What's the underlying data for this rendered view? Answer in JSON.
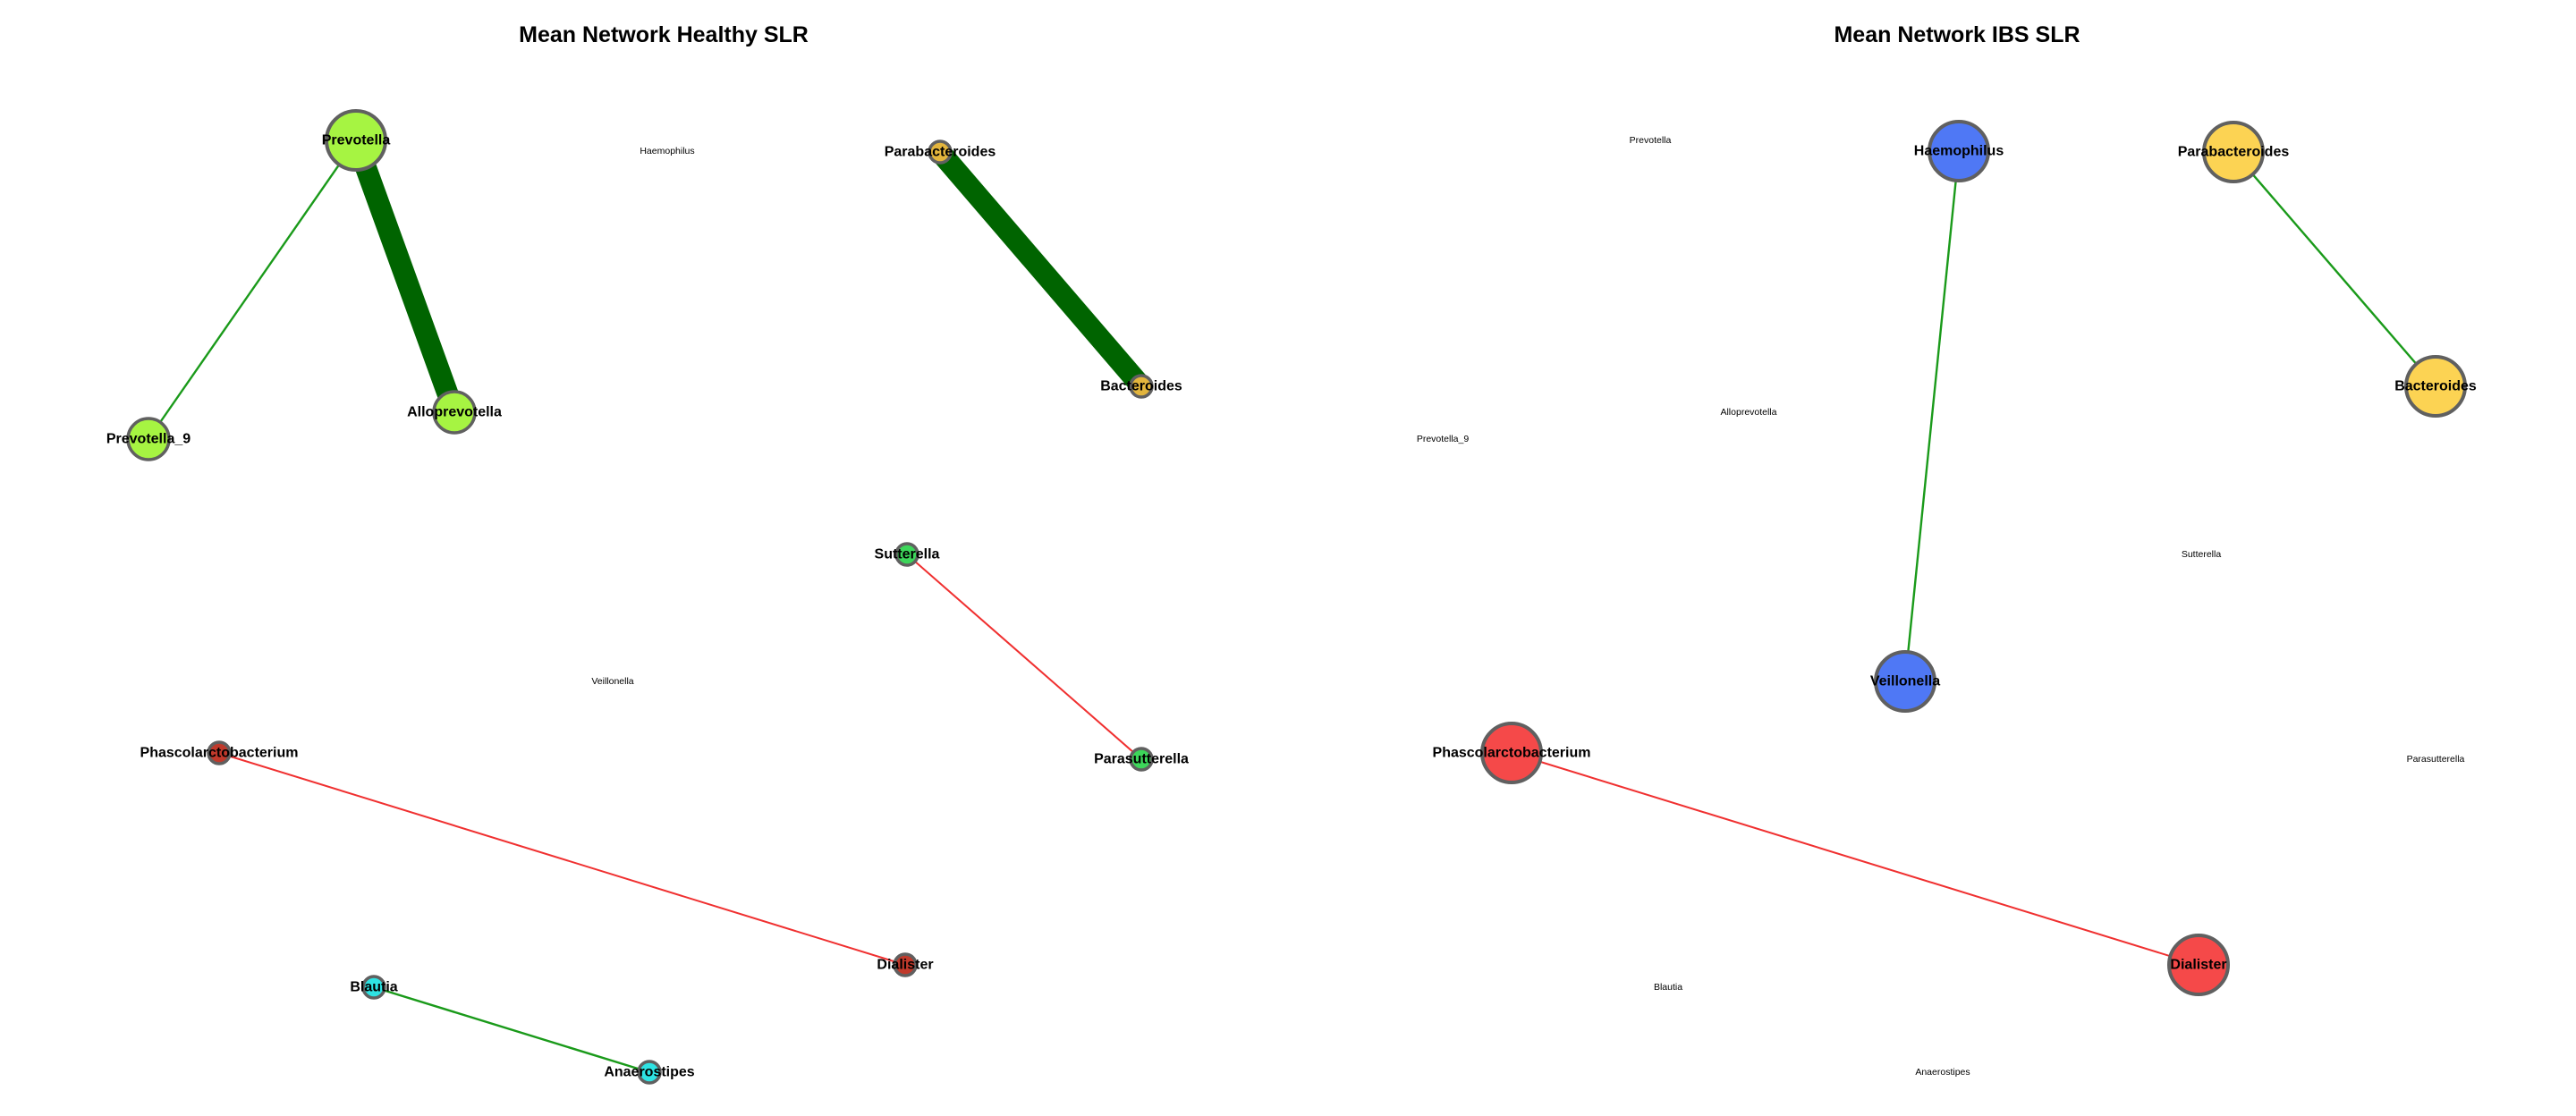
{
  "panels": [
    {
      "title": "Mean Network Healthy SLR",
      "nodes": [
        {
          "id": "Prevotella",
          "label": "Prevotella",
          "color": "#a6f442",
          "size": "large"
        },
        {
          "id": "Haemophilus",
          "label": "Haemophilus",
          "color": null,
          "size": "none"
        },
        {
          "id": "Parabacteroides",
          "label": "Parabacteroides",
          "color": "#e3b53d",
          "size": "small"
        },
        {
          "id": "Prevotella_9",
          "label": "Prevotella_9",
          "color": "#a6f442",
          "size": "medium"
        },
        {
          "id": "Alloprevotella",
          "label": "Alloprevotella",
          "color": "#a6f442",
          "size": "medium"
        },
        {
          "id": "Bacteroides",
          "label": "Bacteroides",
          "color": "#e3b53d",
          "size": "small"
        },
        {
          "id": "Sutterella",
          "label": "Sutterella",
          "color": "#3dd65a",
          "size": "small"
        },
        {
          "id": "Veillonella",
          "label": "Veillonella",
          "color": null,
          "size": "none"
        },
        {
          "id": "Phascolarctobacterium",
          "label": "Phascolarctobacterium",
          "color": "#c0392b",
          "size": "small"
        },
        {
          "id": "Parasutterella",
          "label": "Parasutterella",
          "color": "#3dd65a",
          "size": "small"
        },
        {
          "id": "Dialister",
          "label": "Dialister",
          "color": "#c0392b",
          "size": "small"
        },
        {
          "id": "Blautia",
          "label": "Blautia",
          "color": "#2ee3e3",
          "size": "small"
        },
        {
          "id": "Anaerostipes",
          "label": "Anaerostipes",
          "color": "#2ee3e3",
          "size": "small"
        }
      ],
      "edges": [
        {
          "source": "Prevotella",
          "target": "Alloprevotella",
          "sign": "positive",
          "strength": "strong"
        },
        {
          "source": "Prevotella",
          "target": "Prevotella_9",
          "sign": "positive",
          "strength": "weak"
        },
        {
          "source": "Parabacteroides",
          "target": "Bacteroides",
          "sign": "positive",
          "strength": "strong"
        },
        {
          "source": "Sutterella",
          "target": "Parasutterella",
          "sign": "negative",
          "strength": "weak"
        },
        {
          "source": "Phascolarctobacterium",
          "target": "Dialister",
          "sign": "negative",
          "strength": "weak"
        },
        {
          "source": "Blautia",
          "target": "Anaerostipes",
          "sign": "positive",
          "strength": "weak"
        }
      ]
    },
    {
      "title": "Mean Network IBS SLR",
      "nodes": [
        {
          "id": "Prevotella",
          "label": "Prevotella",
          "color": null,
          "size": "none"
        },
        {
          "id": "Haemophilus",
          "label": "Haemophilus",
          "color": "#4f78f5",
          "size": "large"
        },
        {
          "id": "Parabacteroides",
          "label": "Parabacteroides",
          "color": "#fcd353",
          "size": "large"
        },
        {
          "id": "Alloprevotella",
          "label": "Alloprevotella",
          "color": null,
          "size": "none"
        },
        {
          "id": "Prevotella_9",
          "label": "Prevotella_9",
          "color": null,
          "size": "none"
        },
        {
          "id": "Bacteroides",
          "label": "Bacteroides",
          "color": "#fcd353",
          "size": "large"
        },
        {
          "id": "Sutterella",
          "label": "Sutterella",
          "color": null,
          "size": "none"
        },
        {
          "id": "Veillonella",
          "label": "Veillonella",
          "color": "#4f78f5",
          "size": "large"
        },
        {
          "id": "Phascolarctobacterium",
          "label": "Phascolarctobacterium",
          "color": "#f54949",
          "size": "large"
        },
        {
          "id": "Parasutterella",
          "label": "Parasutterella",
          "color": null,
          "size": "none"
        },
        {
          "id": "Dialister",
          "label": "Dialister",
          "color": "#f54949",
          "size": "large"
        },
        {
          "id": "Blautia",
          "label": "Blautia",
          "color": null,
          "size": "none"
        },
        {
          "id": "Anaerostipes",
          "label": "Anaerostipes",
          "color": null,
          "size": "none"
        }
      ],
      "edges": [
        {
          "source": "Haemophilus",
          "target": "Veillonella",
          "sign": "positive",
          "strength": "weak"
        },
        {
          "source": "Parabacteroides",
          "target": "Bacteroides",
          "sign": "positive",
          "strength": "weak"
        },
        {
          "source": "Phascolarctobacterium",
          "target": "Dialister",
          "sign": "negative",
          "strength": "weak"
        }
      ]
    }
  ],
  "style": {
    "positive_edge_color": "#1a9a1a",
    "strong_positive_edge_color": "#006400",
    "negative_edge_color": "#f03030",
    "node_border_color": "#606060"
  }
}
